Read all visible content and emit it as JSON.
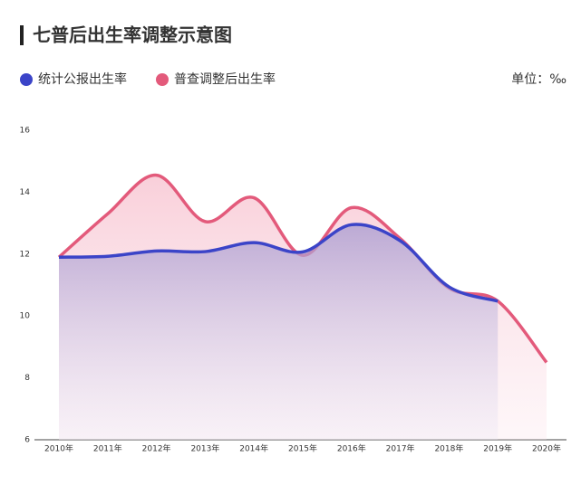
{
  "chart_data": {
    "type": "area-line",
    "title": "七普后出生率调整示意图",
    "unit_label": "单位：‰",
    "categories": [
      "2010年",
      "2011年",
      "2012年",
      "2013年",
      "2014年",
      "2015年",
      "2016年",
      "2017年",
      "2018年",
      "2019年",
      "2020年"
    ],
    "series": [
      {
        "name": "普查调整后出生率",
        "color": "#e35a7b",
        "values": [
          11.9,
          13.3,
          14.55,
          13.05,
          13.82,
          11.96,
          13.5,
          12.5,
          10.9,
          10.48,
          8.5
        ]
      },
      {
        "name": "统计公报出生率",
        "color": "#3b44c8",
        "values": [
          11.9,
          11.93,
          12.1,
          12.08,
          12.37,
          12.07,
          12.95,
          12.43,
          10.94,
          10.48,
          null
        ]
      }
    ],
    "legend_order": [
      1,
      0
    ],
    "ylim": [
      6,
      16
    ],
    "yticks": [
      6,
      8,
      10,
      12,
      14,
      16
    ],
    "grid": false
  }
}
